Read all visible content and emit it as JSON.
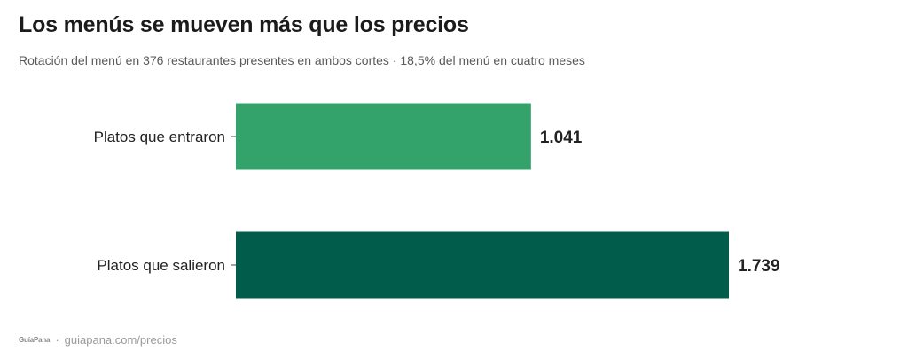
{
  "title": "Los menús se mueven más que los precios",
  "subtitle": "Rotación del menú en 376 restaurantes presentes en ambos cortes · 18,5% del menú en cuatro meses",
  "footer": {
    "logo": "GuíaPana",
    "separator": "·",
    "url": "guiapana.com/precios"
  },
  "colors": {
    "bar_entraron": "#34a26b",
    "bar_salieron": "#025c4c",
    "label": "#222222"
  },
  "chart_data": {
    "type": "bar",
    "orientation": "horizontal",
    "categories": [
      "Platos que entraron",
      "Platos que salieron"
    ],
    "values": [
      1041,
      1739
    ],
    "value_labels": [
      "1.041",
      "1.739"
    ],
    "xlim": [
      0,
      1739
    ],
    "grid": false,
    "title": "Los menús se mueven más que los precios",
    "xlabel": "",
    "ylabel": ""
  }
}
